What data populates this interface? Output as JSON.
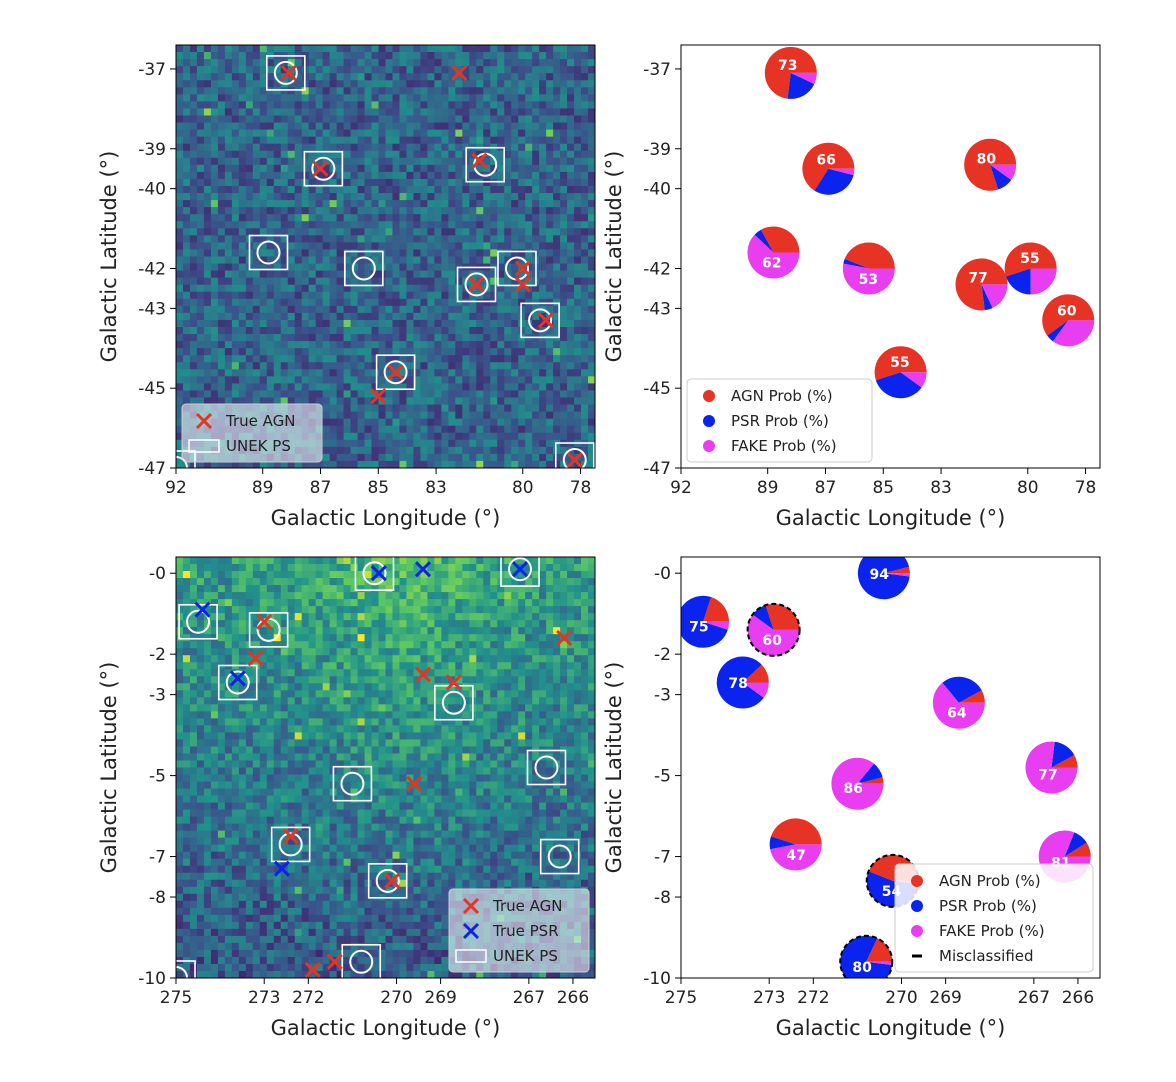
{
  "colors": {
    "agn": "#e63324",
    "psr": "#0a23ee",
    "fake": "#e83df0",
    "frame": "#000000",
    "ps_marker": "#ffffff",
    "heatmap_low": "#31366f",
    "heatmap_high": "#a8dc3c"
  },
  "chart_data": [
    {
      "id": "map-top",
      "type": "heatmap",
      "xlabel": "Galactic Longitude (°)",
      "ylabel": "Galactic Latitude (°)",
      "xlim": [
        92,
        77.5
      ],
      "ylim": [
        -47,
        -36.4
      ],
      "xticks": [
        92,
        89,
        87,
        85,
        83,
        80,
        78
      ],
      "xtick_labels": [
        "92",
        "89",
        "87",
        "85",
        "83",
        "80",
        "78"
      ],
      "yticks": [
        -37,
        -39,
        -40,
        -42,
        -43,
        -45,
        -47
      ],
      "ytick_labels": [
        "-37",
        "-39",
        "-40",
        "-42",
        "-43",
        "-45",
        "-47"
      ],
      "grid": false,
      "colormap": "viridis",
      "legend": {
        "position": "lower-left",
        "items": [
          {
            "label": "True AGN",
            "marker": "x",
            "color": "agn"
          },
          {
            "label": "UNEK PS",
            "marker": "square",
            "color": "ps_marker"
          }
        ]
      },
      "true_agn": [
        [
          88.1,
          -37.1
        ],
        [
          87.0,
          -39.5
        ],
        [
          81.5,
          -39.3
        ],
        [
          84.4,
          -44.6
        ],
        [
          85.0,
          -45.2
        ],
        [
          81.6,
          -42.4
        ],
        [
          80.0,
          -42.0
        ],
        [
          80.0,
          -42.4
        ],
        [
          79.2,
          -43.3
        ],
        [
          78.2,
          -46.8
        ],
        [
          82.2,
          -37.1
        ]
      ],
      "true_psr": [],
      "unek_ps": [
        [
          88.2,
          -37.1
        ],
        [
          86.9,
          -39.5
        ],
        [
          81.3,
          -39.4
        ],
        [
          88.8,
          -41.6
        ],
        [
          85.5,
          -42.0
        ],
        [
          81.6,
          -42.4
        ],
        [
          80.2,
          -42.0
        ],
        [
          79.4,
          -43.3
        ],
        [
          84.4,
          -44.6
        ],
        [
          78.2,
          -46.8
        ],
        [
          92.0,
          -47.0
        ]
      ]
    },
    {
      "id": "pies-top",
      "type": "pie",
      "xlabel": "Galactic Longitude (°)",
      "ylabel": "Galactic Latitude (°)",
      "xlim": [
        92,
        77.5
      ],
      "ylim": [
        -47,
        -36.4
      ],
      "xticks": [
        92,
        89,
        87,
        85,
        83,
        80,
        78
      ],
      "xtick_labels": [
        "92",
        "89",
        "87",
        "85",
        "83",
        "80",
        "78"
      ],
      "yticks": [
        -37,
        -39,
        -40,
        -42,
        -43,
        -45,
        -47
      ],
      "ytick_labels": [
        "-37",
        "-39",
        "-40",
        "-42",
        "-43",
        "-45",
        "-47"
      ],
      "grid": false,
      "legend": {
        "position": "lower-left",
        "items": [
          {
            "label": "AGN Prob (%)",
            "marker": "dot",
            "color": "agn"
          },
          {
            "label": "PSR Prob (%)",
            "marker": "dot",
            "color": "psr"
          },
          {
            "label": "FAKE Prob (%)",
            "marker": "dot",
            "color": "fake"
          }
        ]
      },
      "pies": [
        {
          "x": 88.2,
          "y": -37.1,
          "agn": 73,
          "psr": 20,
          "fake": 7,
          "label": "73",
          "misclassified": false
        },
        {
          "x": 86.9,
          "y": -39.5,
          "agn": 66,
          "psr": 30,
          "fake": 4,
          "label": "66",
          "misclassified": false
        },
        {
          "x": 81.3,
          "y": -39.4,
          "agn": 80,
          "psr": 10,
          "fake": 10,
          "label": "80",
          "misclassified": false
        },
        {
          "x": 88.8,
          "y": -41.6,
          "agn": 33,
          "psr": 5,
          "fake": 62,
          "label": "62",
          "misclassified": false
        },
        {
          "x": 85.5,
          "y": -42.0,
          "agn": 44,
          "psr": 3,
          "fake": 53,
          "label": "53",
          "misclassified": false
        },
        {
          "x": 79.9,
          "y": -42.0,
          "agn": 55,
          "psr": 20,
          "fake": 25,
          "label": "55",
          "misclassified": false
        },
        {
          "x": 81.6,
          "y": -42.4,
          "agn": 77,
          "psr": 5,
          "fake": 18,
          "label": "77",
          "misclassified": false
        },
        {
          "x": 78.6,
          "y": -43.3,
          "agn": 60,
          "psr": 5,
          "fake": 35,
          "label": "60",
          "misclassified": false
        },
        {
          "x": 84.4,
          "y": -44.6,
          "agn": 55,
          "psr": 35,
          "fake": 10,
          "label": "55",
          "misclassified": false
        }
      ]
    },
    {
      "id": "map-bottom",
      "type": "heatmap",
      "xlabel": "Galactic Longitude (°)",
      "ylabel": "Galactic Latitude (°)",
      "xlim": [
        275,
        265.5
      ],
      "ylim": [
        -10,
        0.4
      ],
      "xticks": [
        275,
        273,
        272,
        270,
        269,
        267,
        266
      ],
      "xtick_labels": [
        "275",
        "273",
        "272",
        "270",
        "269",
        "267",
        "266"
      ],
      "yticks": [
        0,
        -2,
        -3,
        -5,
        -7,
        -8,
        -10
      ],
      "ytick_labels": [
        "-0",
        "-2",
        "-3",
        "-5",
        "-7",
        "-8",
        "-10"
      ],
      "grid": false,
      "colormap": "viridis",
      "legend": {
        "position": "lower-right",
        "items": [
          {
            "label": "True AGN",
            "marker": "x",
            "color": "agn"
          },
          {
            "label": "True PSR",
            "marker": "x",
            "color": "psr"
          },
          {
            "label": "UNEK PS",
            "marker": "square",
            "color": "ps_marker"
          }
        ]
      },
      "true_agn": [
        [
          273.0,
          -1.2
        ],
        [
          273.2,
          -2.1
        ],
        [
          272.4,
          -6.5
        ],
        [
          271.9,
          -9.8
        ],
        [
          271.4,
          -9.6
        ],
        [
          270.1,
          -7.6
        ],
        [
          269.6,
          -5.2
        ],
        [
          269.4,
          -2.5
        ],
        [
          268.7,
          -2.7
        ],
        [
          266.2,
          -1.6
        ]
      ],
      "true_psr": [
        [
          274.4,
          -0.9
        ],
        [
          273.6,
          -2.6
        ],
        [
          272.6,
          -7.3
        ],
        [
          270.4,
          0.0
        ],
        [
          269.4,
          0.1
        ],
        [
          267.2,
          0.1
        ]
      ],
      "unek_ps": [
        [
          274.5,
          -1.2
        ],
        [
          272.9,
          -1.4
        ],
        [
          273.6,
          -2.7
        ],
        [
          270.5,
          0.0
        ],
        [
          267.2,
          0.1
        ],
        [
          268.7,
          -3.2
        ],
        [
          266.6,
          -4.8
        ],
        [
          271.0,
          -5.2
        ],
        [
          272.4,
          -6.7
        ],
        [
          266.3,
          -7.0
        ],
        [
          270.2,
          -7.6
        ],
        [
          270.8,
          -9.6
        ],
        [
          275.0,
          -10.0
        ]
      ]
    },
    {
      "id": "pies-bottom",
      "type": "pie",
      "xlabel": "Galactic Longitude (°)",
      "ylabel": "Galactic Latitude (°)",
      "xlim": [
        275,
        265.5
      ],
      "ylim": [
        -10,
        0.4
      ],
      "xticks": [
        275,
        273,
        272,
        270,
        269,
        267,
        266
      ],
      "xtick_labels": [
        "275",
        "273",
        "272",
        "270",
        "269",
        "267",
        "266"
      ],
      "yticks": [
        0,
        -2,
        -3,
        -5,
        -7,
        -8,
        -10
      ],
      "ytick_labels": [
        "-0",
        "-2",
        "-3",
        "-5",
        "-7",
        "-8",
        "-10"
      ],
      "grid": false,
      "legend": {
        "position": "lower-right",
        "items": [
          {
            "label": "AGN Prob (%)",
            "marker": "dot",
            "color": "agn"
          },
          {
            "label": "PSR Prob (%)",
            "marker": "dot",
            "color": "psr"
          },
          {
            "label": "FAKE Prob (%)",
            "marker": "dot",
            "color": "fake"
          },
          {
            "label": "Misclassified",
            "marker": "dash",
            "color": "frame"
          }
        ]
      },
      "pies": [
        {
          "x": 270.4,
          "y": 0.0,
          "agn": 4,
          "psr": 94,
          "fake": 2,
          "label": "94",
          "misclassified": false
        },
        {
          "x": 274.5,
          "y": -1.2,
          "agn": 20,
          "psr": 75,
          "fake": 5,
          "label": "75",
          "misclassified": false
        },
        {
          "x": 272.9,
          "y": -1.4,
          "agn": 30,
          "psr": 10,
          "fake": 60,
          "label": "60",
          "misclassified": true
        },
        {
          "x": 273.6,
          "y": -2.7,
          "agn": 12,
          "psr": 78,
          "fake": 10,
          "label": "78",
          "misclassified": false
        },
        {
          "x": 268.7,
          "y": -3.2,
          "agn": 8,
          "psr": 28,
          "fake": 64,
          "label": "64",
          "misclassified": false
        },
        {
          "x": 266.6,
          "y": -4.8,
          "agn": 8,
          "psr": 15,
          "fake": 77,
          "label": "77",
          "misclassified": false
        },
        {
          "x": 271.0,
          "y": -5.2,
          "agn": 4,
          "psr": 10,
          "fake": 86,
          "label": "86",
          "misclassified": false
        },
        {
          "x": 272.4,
          "y": -6.7,
          "agn": 45,
          "psr": 8,
          "fake": 47,
          "label": "47",
          "misclassified": false
        },
        {
          "x": 266.3,
          "y": -7.0,
          "agn": 9,
          "psr": 10,
          "fake": 81,
          "label": "81",
          "misclassified": false
        },
        {
          "x": 270.2,
          "y": -7.6,
          "agn": 44,
          "psr": 54,
          "fake": 2,
          "label": "54",
          "misclassified": true
        },
        {
          "x": 270.8,
          "y": -9.6,
          "agn": 18,
          "psr": 80,
          "fake": 2,
          "label": "80",
          "misclassified": true
        }
      ]
    }
  ]
}
